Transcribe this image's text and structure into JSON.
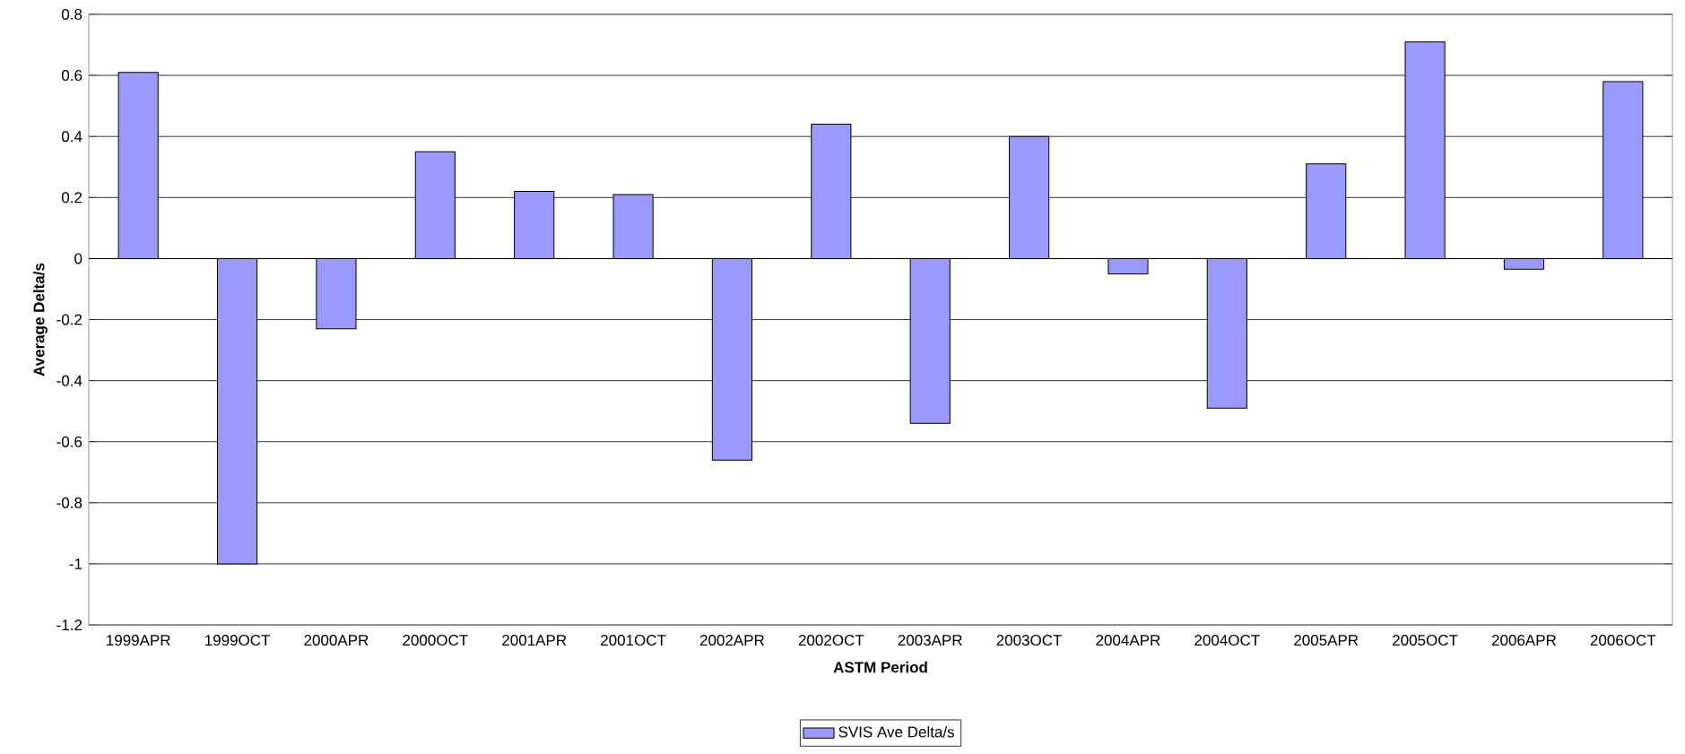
{
  "chart_data": {
    "type": "bar",
    "xlabel": "ASTM Period",
    "ylabel": "Average Delta/s",
    "categories": [
      "1999APR",
      "1999OCT",
      "2000APR",
      "2000OCT",
      "2001APR",
      "2001OCT",
      "2002APR",
      "2002OCT",
      "2003APR",
      "2003OCT",
      "2004APR",
      "2004OCT",
      "2005APR",
      "2005OCT",
      "2006APR",
      "2006OCT"
    ],
    "series": [
      {
        "name": "SVIS Ave Delta/s",
        "color": "#9999ff",
        "values": [
          0.61,
          -1.0,
          -0.23,
          0.35,
          0.22,
          0.21,
          -0.66,
          0.44,
          -0.54,
          0.4,
          -0.05,
          -0.49,
          0.31,
          0.71,
          -0.035,
          0.58
        ]
      }
    ],
    "ylim": [
      -1.2,
      0.8
    ],
    "yticks": [
      -1.2,
      -1,
      -0.8,
      -0.6,
      -0.4,
      -0.2,
      0,
      0.2,
      0.4,
      0.6,
      0.8
    ],
    "grid": "y",
    "legend": "bottom"
  }
}
